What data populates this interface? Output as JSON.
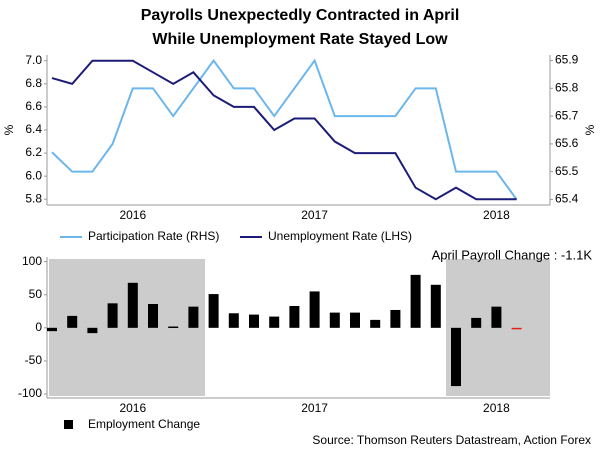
{
  "chart_data": [
    {
      "type": "line",
      "title": "Payrolls Unexpectedly Contracted in April",
      "subtitle": "While Unemployment Rate Stayed Low",
      "categories": [
        null,
        null,
        null,
        null,
        "2016",
        null,
        null,
        null,
        null,
        null,
        null,
        null,
        null,
        "2017",
        null,
        null,
        null,
        null,
        null,
        null,
        null,
        null,
        "2018",
        null
      ],
      "ylabel": "%",
      "y2label": "%",
      "ylim": [
        5.75,
        7.05
      ],
      "yticks": [
        {
          "value": 5.8,
          "label": "5.8"
        },
        {
          "value": 6.0,
          "label": "6.0"
        },
        6.2,
        6.4,
        6.6,
        6.8,
        {
          "value": 7.0,
          "label": "7.0"
        }
      ],
      "y2lim": [
        65.38,
        65.92
      ],
      "y2ticks": [
        65.4,
        65.5,
        65.6,
        65.7,
        65.8,
        65.9
      ],
      "series": [
        {
          "name": "Participation Rate (RHS)",
          "color": "#6cb6ee",
          "axis": "y2",
          "values": [
            65.57,
            65.5,
            65.5,
            65.6,
            65.8,
            65.8,
            65.7,
            65.8,
            65.9,
            65.8,
            65.8,
            65.7,
            65.8,
            65.9,
            65.7,
            65.7,
            65.7,
            65.7,
            65.8,
            65.8,
            65.5,
            65.5,
            65.5,
            65.4
          ]
        },
        {
          "name": "Unemployment Rate (LHS)",
          "color": "#1c1c78",
          "values": [
            6.85,
            6.8,
            7.0,
            7.0,
            7.0,
            6.9,
            6.8,
            6.9,
            6.7,
            6.6,
            6.6,
            6.4,
            6.5,
            6.5,
            6.3,
            6.2,
            6.2,
            6.2,
            5.9,
            5.8,
            5.9,
            5.8,
            5.8,
            5.8
          ]
        }
      ]
    },
    {
      "type": "bar",
      "categories": [
        null,
        null,
        null,
        null,
        "2016",
        null,
        null,
        null,
        null,
        null,
        null,
        null,
        null,
        "2017",
        null,
        null,
        null,
        null,
        null,
        null,
        null,
        null,
        "2018",
        null
      ],
      "annotation": "April Payroll Change : -1.1K",
      "ylim": [
        -106,
        107
      ],
      "yticks": [
        -100,
        -50,
        0,
        50,
        100
      ],
      "series": [
        {
          "name": "Employment Change",
          "color": "#000000",
          "colors": [
            "#000000",
            "#000000",
            "#000000",
            "#000000",
            "#000000",
            "#000000",
            "#000000",
            "#000000",
            "#000000",
            "#000000",
            "#000000",
            "#000000",
            "#000000",
            "#000000",
            "#000000",
            "#000000",
            "#000000",
            "#000000",
            "#000000",
            "#000000",
            "#000000",
            "#000000",
            "#000000",
            "#e0201a"
          ],
          "values": [
            -5,
            18,
            -8,
            37,
            68,
            36,
            2,
            32,
            51,
            22,
            20,
            17,
            33,
            55,
            23,
            23,
            12,
            27,
            80,
            65,
            -88,
            15,
            32,
            -1.1
          ]
        }
      ]
    }
  ],
  "source": "Source: Thomson Reuters Datastream, Action Forex"
}
